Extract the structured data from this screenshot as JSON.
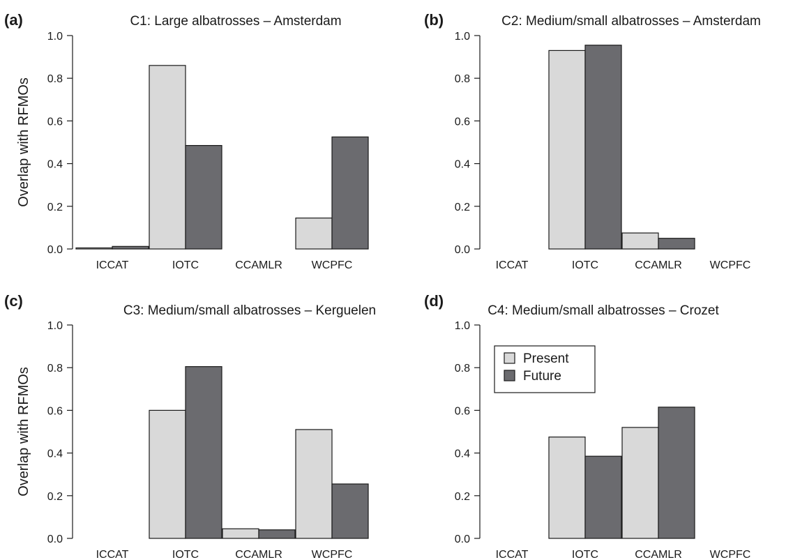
{
  "figure": {
    "ylabel": "Overlap with RFMOs",
    "legend": [
      {
        "label": "Present",
        "color": "#d9d9d9"
      },
      {
        "label": "Future",
        "color": "#6b6b6f"
      }
    ]
  },
  "chart_data": [
    {
      "type": "bar",
      "panel": "(a)",
      "title": "C1: Large albatrosses – Amsterdam",
      "categories": [
        "ICCAT",
        "IOTC",
        "CCAMLR",
        "WCPFC"
      ],
      "series": [
        {
          "name": "Present",
          "values": [
            0.005,
            0.86,
            0.0,
            0.145
          ]
        },
        {
          "name": "Future",
          "values": [
            0.012,
            0.485,
            0.0,
            0.525
          ]
        }
      ],
      "ylabel": "Overlap with RFMOs",
      "ylim": [
        0,
        1.0
      ],
      "yticks": [
        "0.0",
        "0.2",
        "0.4",
        "0.6",
        "0.8",
        "1.0"
      ],
      "grid": false
    },
    {
      "type": "bar",
      "panel": "(b)",
      "title": "C2: Medium/small albatrosses – Amsterdam",
      "categories": [
        "ICCAT",
        "IOTC",
        "CCAMLR",
        "WCPFC"
      ],
      "series": [
        {
          "name": "Present",
          "values": [
            0.0,
            0.93,
            0.075,
            0.0
          ]
        },
        {
          "name": "Future",
          "values": [
            0.0,
            0.955,
            0.05,
            0.0
          ]
        }
      ],
      "ylabel": "",
      "ylim": [
        0,
        1.0
      ],
      "yticks": [
        "0.0",
        "0.2",
        "0.4",
        "0.6",
        "0.8",
        "1.0"
      ],
      "grid": false
    },
    {
      "type": "bar",
      "panel": "(c)",
      "title": "C3: Medium/small albatrosses – Kerguelen",
      "categories": [
        "ICCAT",
        "IOTC",
        "CCAMLR",
        "WCPFC"
      ],
      "series": [
        {
          "name": "Present",
          "values": [
            0.0,
            0.6,
            0.045,
            0.51
          ]
        },
        {
          "name": "Future",
          "values": [
            0.0,
            0.805,
            0.04,
            0.255
          ]
        }
      ],
      "ylabel": "Overlap with RFMOs",
      "ylim": [
        0,
        1.0
      ],
      "yticks": [
        "0.0",
        "0.2",
        "0.4",
        "0.6",
        "0.8",
        "1.0"
      ],
      "grid": false
    },
    {
      "type": "bar",
      "panel": "(d)",
      "title": "C4: Medium/small albatrosses – Crozet",
      "categories": [
        "ICCAT",
        "IOTC",
        "CCAMLR",
        "WCPFC"
      ],
      "series": [
        {
          "name": "Present",
          "values": [
            0.0,
            0.475,
            0.52,
            0.0
          ]
        },
        {
          "name": "Future",
          "values": [
            0.0,
            0.385,
            0.615,
            0.0
          ]
        }
      ],
      "ylabel": "",
      "ylim": [
        0,
        1.0
      ],
      "yticks": [
        "0.0",
        "0.2",
        "0.4",
        "0.6",
        "0.8",
        "1.0"
      ],
      "grid": false,
      "legend_position": "top-left"
    }
  ]
}
